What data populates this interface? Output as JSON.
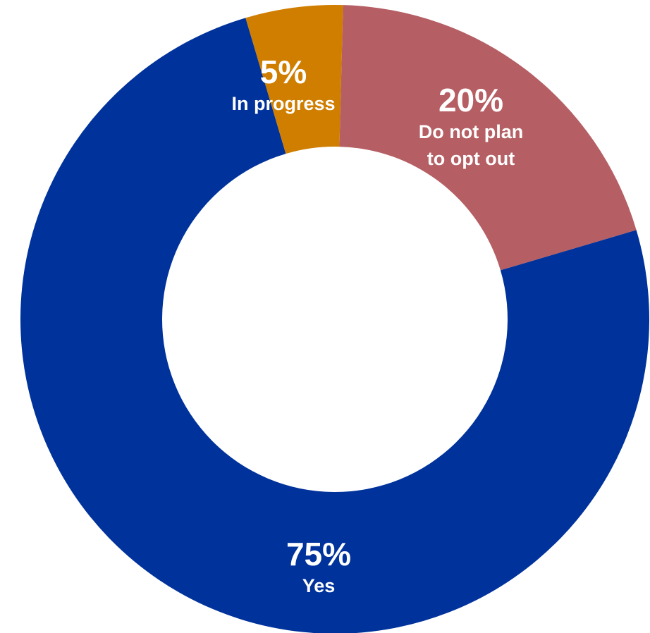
{
  "chart_data": {
    "type": "pie",
    "donut": true,
    "slices": [
      {
        "label_lines": [
          "Do not plan",
          "to opt out"
        ],
        "value": 20,
        "value_label": "20%",
        "color": "#B55E63"
      },
      {
        "label_lines": [
          "Yes"
        ],
        "value": 75,
        "value_label": "75%",
        "color": "#00329B"
      },
      {
        "label_lines": [
          "In progress"
        ],
        "value": 5,
        "value_label": "5%",
        "color": "#CF7E00"
      }
    ]
  }
}
